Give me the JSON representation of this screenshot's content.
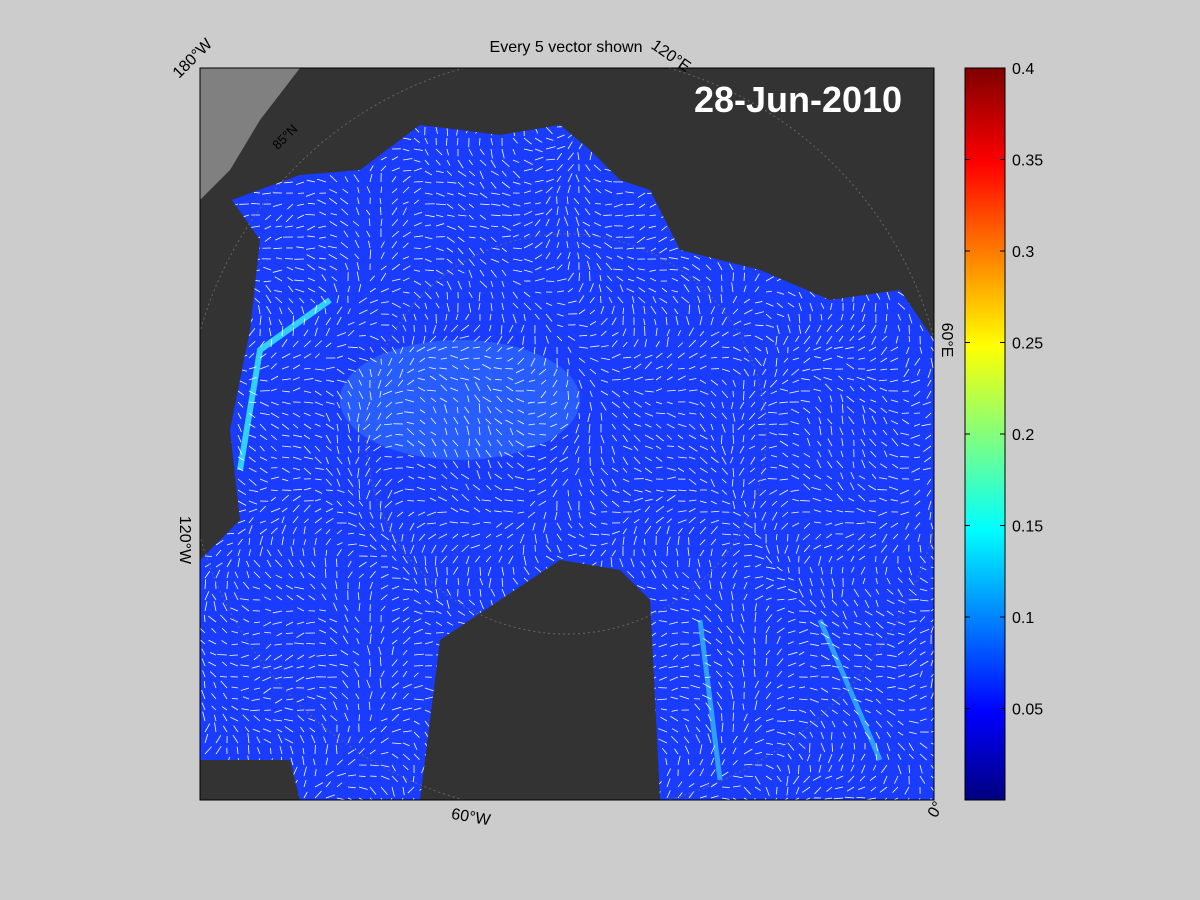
{
  "title": "Every 5 vector shown",
  "date_label": "28-Jun-2010",
  "map": {
    "graticule_labels": [
      "180°W",
      "120°E",
      "60°E",
      "0°",
      "60°W",
      "120°W",
      "85°N"
    ]
  },
  "colorbar": {
    "lim": [
      0,
      0.4
    ],
    "ticks": [
      0.05,
      0.1,
      0.15,
      0.2,
      0.25,
      0.3,
      0.35,
      0.4
    ]
  }
}
